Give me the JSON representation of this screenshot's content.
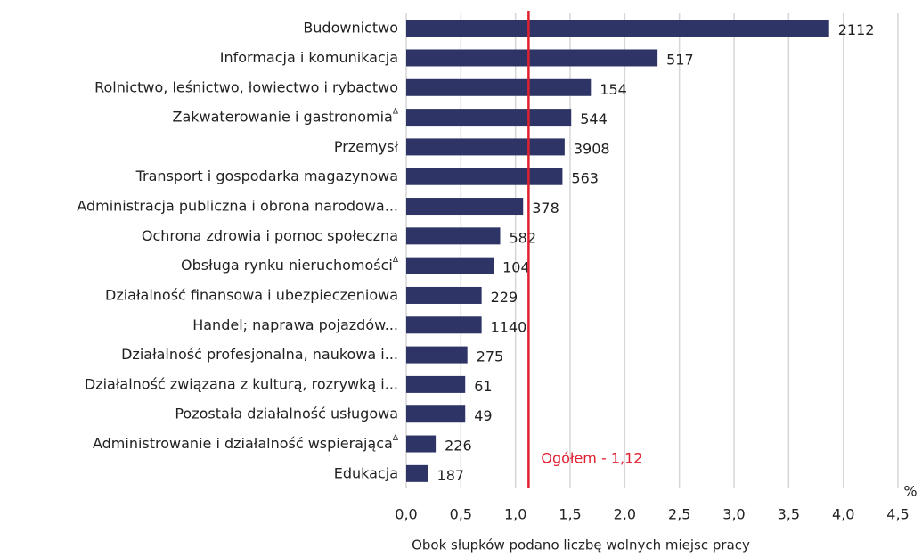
{
  "chart_data": {
    "type": "bar",
    "orientation": "horizontal",
    "categories": [
      "Budownictwo",
      "Informacja i komunikacja",
      "Rolnictwo, leśnictwo, łowiectwo i rybactwo",
      "Zakwaterowanie i gastronomia",
      "Przemysł",
      "Transport i gospodarka magazynowa",
      "Administracja publiczna i obrona narodowa...",
      "Ochrona zdrowia i pomoc społeczna",
      "Obsługa rynku nieruchomości",
      "Działalność finansowa i ubezpieczeniowa",
      "Handel; naprawa pojazdów...",
      "Działalność profesjonalna, naukowa i...",
      "Działalność związana z kulturą, rozrywką i...",
      "Pozostała działalność usługowa",
      "Administrowanie i działalność wspierająca",
      "Edukacja"
    ],
    "category_marks": [
      null,
      null,
      null,
      "Δ",
      null,
      null,
      null,
      null,
      "Δ",
      null,
      null,
      null,
      null,
      null,
      "Δ",
      null
    ],
    "values": [
      3.87,
      2.3,
      1.69,
      1.51,
      1.45,
      1.43,
      1.07,
      0.86,
      0.8,
      0.69,
      0.69,
      0.56,
      0.54,
      0.54,
      0.27,
      0.2
    ],
    "vacancies": [
      2112,
      517,
      154,
      544,
      3908,
      563,
      378,
      582,
      104,
      229,
      1140,
      275,
      61,
      49,
      226,
      187
    ],
    "color": "#2e3566",
    "xlim": [
      0,
      4.5
    ],
    "xticks": [
      {
        "value": 0,
        "label": "0,0"
      },
      {
        "value": 0.5,
        "label": "0,5"
      },
      {
        "value": 1,
        "label": "1,0"
      },
      {
        "value": 1.5,
        "label": "1,5"
      },
      {
        "value": 2,
        "label": "2,0"
      },
      {
        "value": 2.5,
        "label": "2,5"
      },
      {
        "value": 3,
        "label": "3,0"
      },
      {
        "value": 3.5,
        "label": "3,5"
      },
      {
        "value": 4,
        "label": "4,0"
      },
      {
        "value": 4.5,
        "label": "4,5"
      }
    ],
    "x_unit": "%",
    "grid": true,
    "reference_line": {
      "value": 1.12,
      "label": "Ogółem - 1,12",
      "color": "#e0202f"
    },
    "footnote": "Obok słupków podano liczbę wolnych miejsc pracy"
  }
}
